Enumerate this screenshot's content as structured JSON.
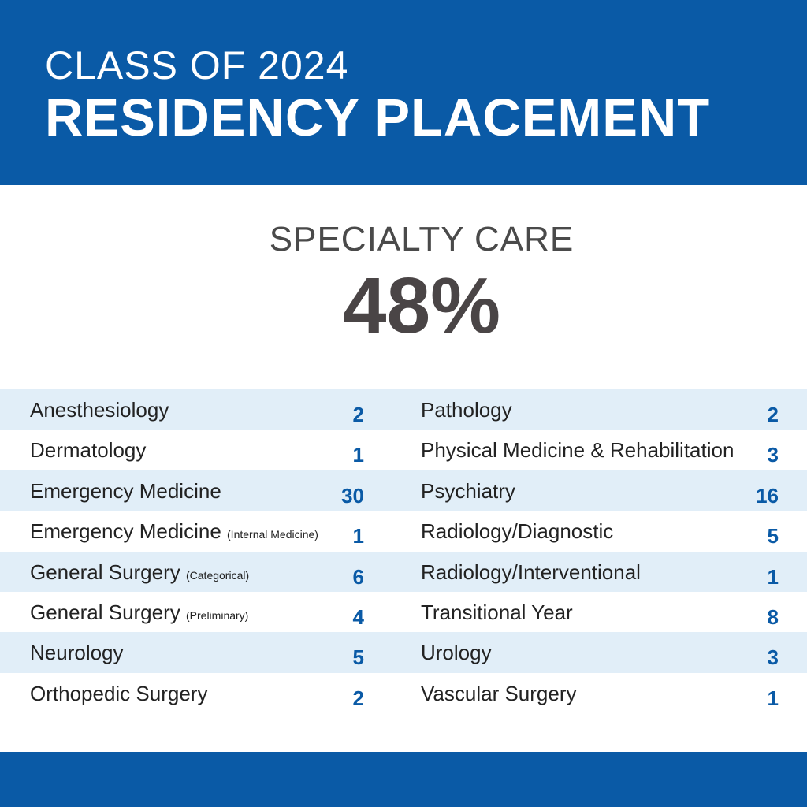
{
  "header": {
    "line1": "CLASS OF 2024",
    "line2": "RESIDENCY PLACEMENT"
  },
  "summary": {
    "label": "SPECIALTY CARE",
    "value": "48%"
  },
  "colors": {
    "brand_blue": "#0a5aa6",
    "row_shade": "#e1eef8",
    "headline_gray": "#4a4546"
  },
  "left": [
    {
      "name": "Anesthesiology",
      "note": "",
      "count": "2"
    },
    {
      "name": "Dermatology",
      "note": "",
      "count": "1"
    },
    {
      "name": "Emergency Medicine",
      "note": "",
      "count": "30"
    },
    {
      "name": "Emergency Medicine",
      "note": "(Internal Medicine)",
      "count": "1"
    },
    {
      "name": "General Surgery",
      "note": "(Categorical)",
      "count": "6"
    },
    {
      "name": "General Surgery",
      "note": "(Preliminary)",
      "count": "4"
    },
    {
      "name": "Neurology",
      "note": "",
      "count": "5"
    },
    {
      "name": "Orthopedic Surgery",
      "note": "",
      "count": "2"
    }
  ],
  "right": [
    {
      "name": "Pathology",
      "count": "2"
    },
    {
      "name": "Physical Medicine & Rehabilitation",
      "count": "3"
    },
    {
      "name": "Psychiatry",
      "count": "16"
    },
    {
      "name": "Radiology/Diagnostic",
      "count": "5"
    },
    {
      "name": "Radiology/Interventional",
      "count": "1"
    },
    {
      "name": "Transitional Year",
      "count": "8"
    },
    {
      "name": "Urology",
      "count": "3"
    },
    {
      "name": "Vascular Surgery",
      "count": "1"
    }
  ]
}
